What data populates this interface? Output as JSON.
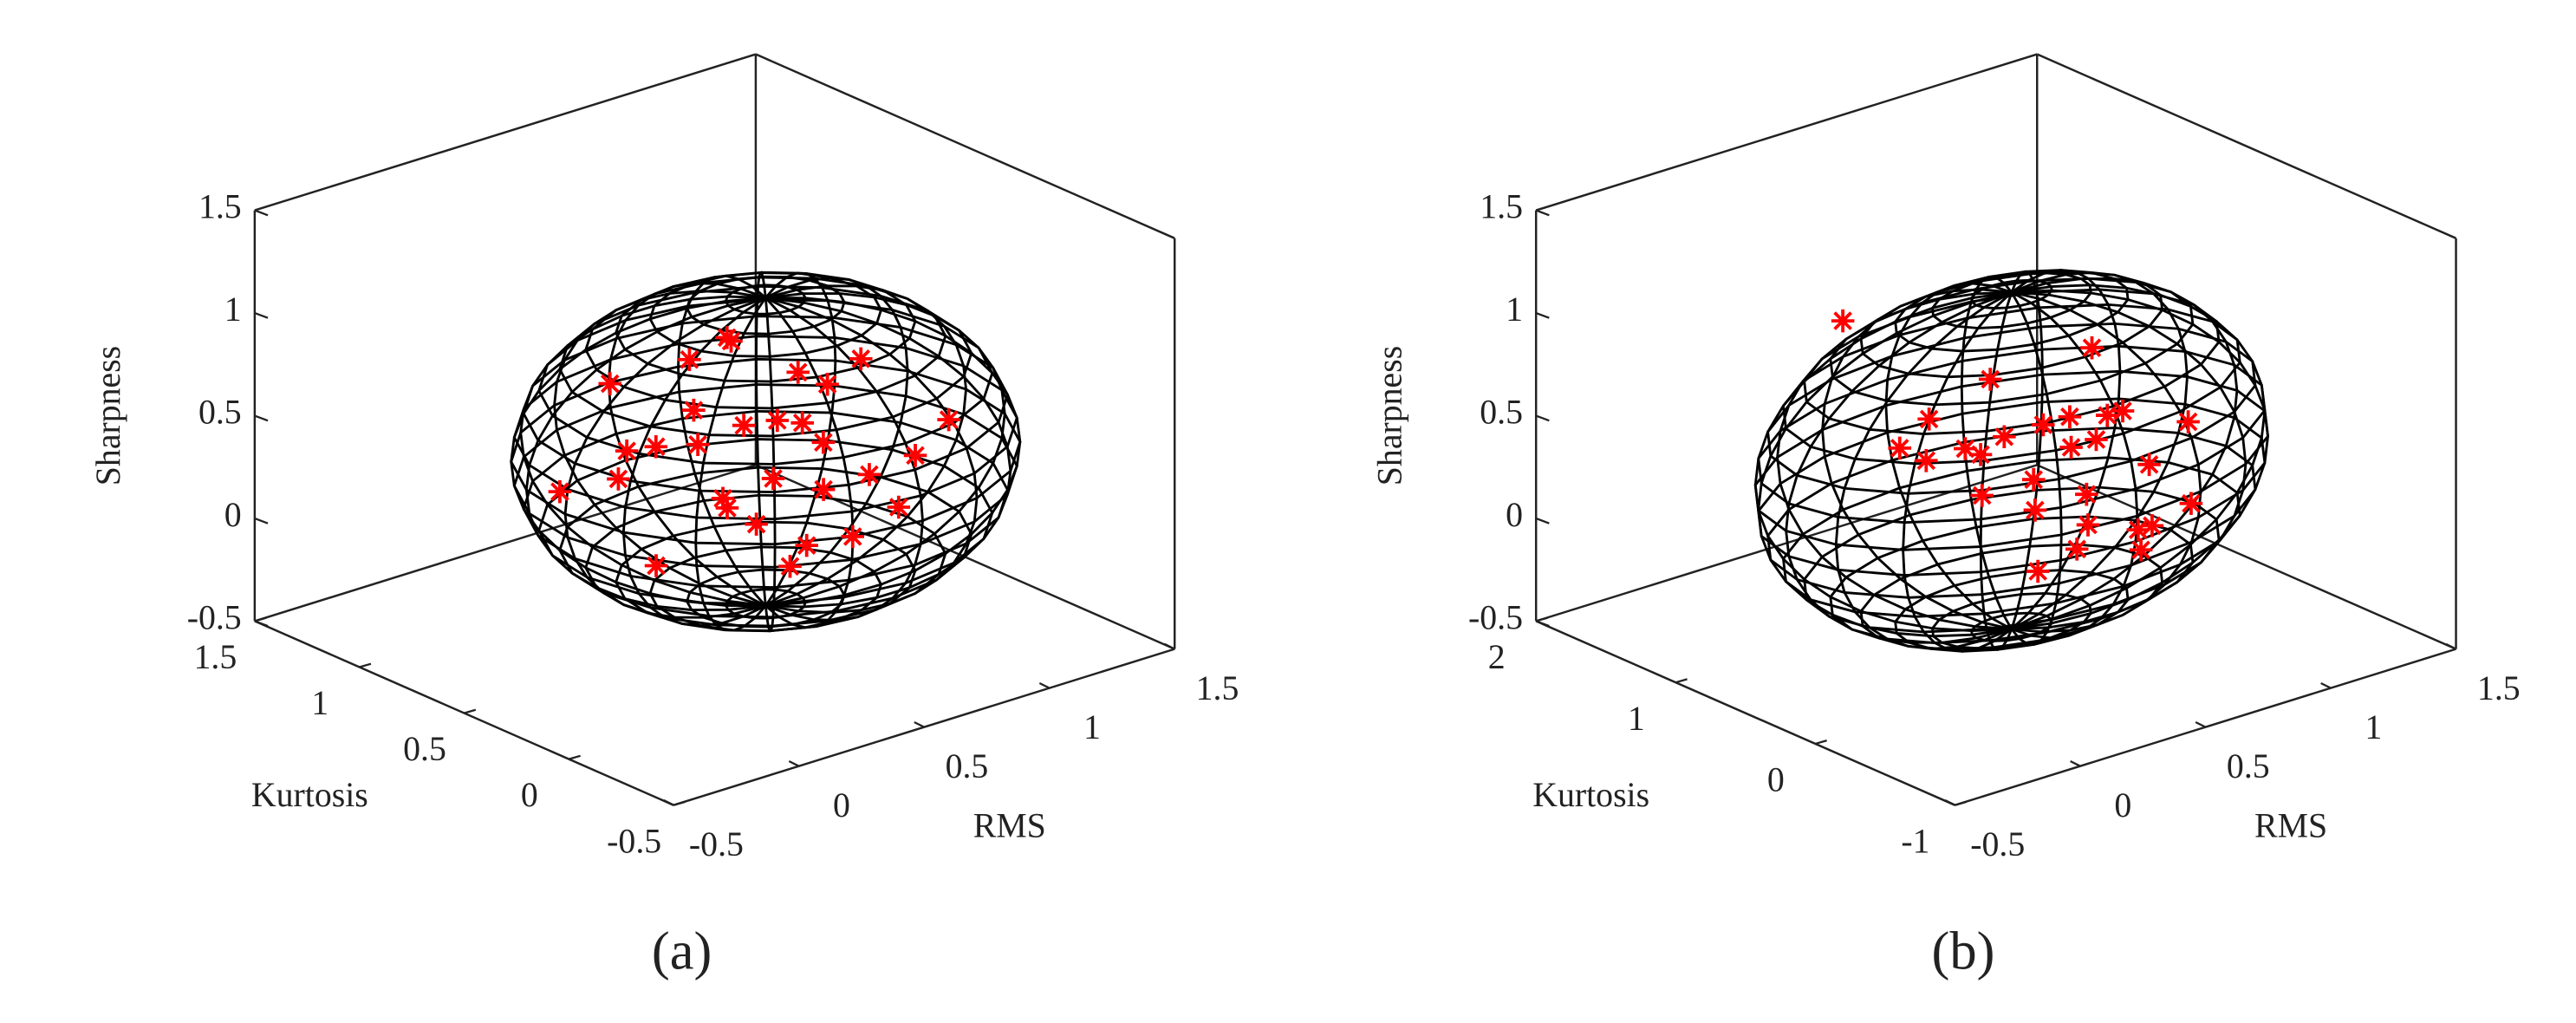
{
  "chart_data": [
    {
      "type": "scatter3d",
      "label": "(a)",
      "xlabel": "RMS",
      "ylabel": "Kurtosis",
      "zlabel": "Sharpness",
      "xlim": [
        -0.5,
        1.5
      ],
      "ylim": [
        -0.5,
        1.5
      ],
      "zlim": [
        -0.5,
        1.5
      ],
      "xticks": [
        -0.5,
        0,
        0.5,
        1,
        1.5
      ],
      "yticks": [
        -0.5,
        0,
        0.5,
        1,
        1.5
      ],
      "zticks": [
        -0.5,
        0,
        0.5,
        1,
        1.5
      ],
      "ellipsoid": {
        "color": "#000000",
        "center": [
          0.72,
          0.52,
          0.3
        ],
        "radii": [
          0.8,
          0.75,
          0.75
        ]
      },
      "series": [
        {
          "color": "#ff0000",
          "x": [
            0.9,
            1.0,
            0.8,
            0.7,
            0.6,
            0.75,
            0.85,
            0.95,
            0.5,
            0.55,
            0.65,
            0.7,
            0.8,
            0.9,
            1.05,
            1.1,
            0.45,
            0.4,
            0.6,
            0.7,
            0.75,
            0.85,
            0.5,
            0.55,
            0.65,
            0.95,
            1.0,
            0.35,
            0.3,
            0.6
          ],
          "y": [
            0.9,
            0.7,
            0.8,
            0.6,
            0.7,
            0.5,
            0.4,
            0.3,
            0.6,
            0.5,
            0.4,
            0.3,
            0.2,
            0.1,
            0.2,
            0.1,
            0.9,
            0.8,
            0.9,
            0.7,
            0.6,
            0.5,
            1.0,
            0.2,
            0.8,
            0.5,
            0.4,
            0.6,
            1.0,
            0.1
          ],
          "z": [
            0.6,
            0.5,
            0.7,
            0.4,
            0.3,
            0.45,
            0.35,
            0.2,
            0.55,
            0.1,
            0.25,
            -0.05,
            0,
            0.15,
            0.3,
            0.5,
            0.1,
            0.3,
            0.2,
            0,
            -0.1,
            0.4,
            0.5,
            -0.05,
            0.65,
            0.55,
            0.7,
            -0.15,
            0.05,
            0.35
          ]
        }
      ]
    },
    {
      "type": "scatter3d",
      "label": "(b)",
      "xlabel": "RMS",
      "ylabel": "Kurtosis",
      "zlabel": "Sharpness",
      "xlim": [
        -0.5,
        1.5
      ],
      "ylim": [
        -1,
        2
      ],
      "zlim": [
        -0.5,
        1.5
      ],
      "xticks": [
        -0.5,
        0,
        0.5,
        1,
        1.5
      ],
      "yticks": [
        -1,
        0,
        1,
        2
      ],
      "zticks": [
        -0.5,
        0,
        0.5,
        1,
        1.5
      ],
      "ellipsoid": {
        "color": "#000000",
        "center": [
          0.59,
          0.55,
          0.3
        ],
        "radii": [
          0.9,
          0.9,
          0.82
        ]
      },
      "series": [
        {
          "color": "#ff0000",
          "x": [
            0.5,
            0.6,
            0.7,
            0.8,
            0.9,
            1.0,
            1.1,
            0.4,
            0.5,
            0.6,
            0.7,
            0.8,
            0.9,
            1.0,
            0.45,
            0.55,
            0.65,
            0.75,
            0.85,
            0.95,
            1.05,
            0.5,
            0.7,
            0.9,
            0.6,
            0.8,
            1.0,
            0
          ],
          "y": [
            1.0,
            0.9,
            0.8,
            0.7,
            0.5,
            0.3,
            0.2,
            0.8,
            0.6,
            0.4,
            0.2,
            0,
            0.1,
            0,
            1.1,
            0.7,
            0.5,
            0.3,
            0.6,
            0.4,
            0.8,
            0.2,
            0.9,
            0.2,
            0.1,
            0.5,
            0.6,
            0.7
          ],
          "z": [
            0.2,
            0.25,
            0.3,
            0.35,
            0.3,
            0.2,
            0.4,
            0.5,
            0.15,
            0.1,
            0.05,
            -0.05,
            0,
            0.1,
            0.25,
            0.3,
            0.2,
            0.15,
            0.4,
            0.45,
            0.6,
            -0.1,
            0.55,
            -0.05,
            0,
            0.3,
            0.35,
            1.16
          ]
        }
      ]
    }
  ]
}
